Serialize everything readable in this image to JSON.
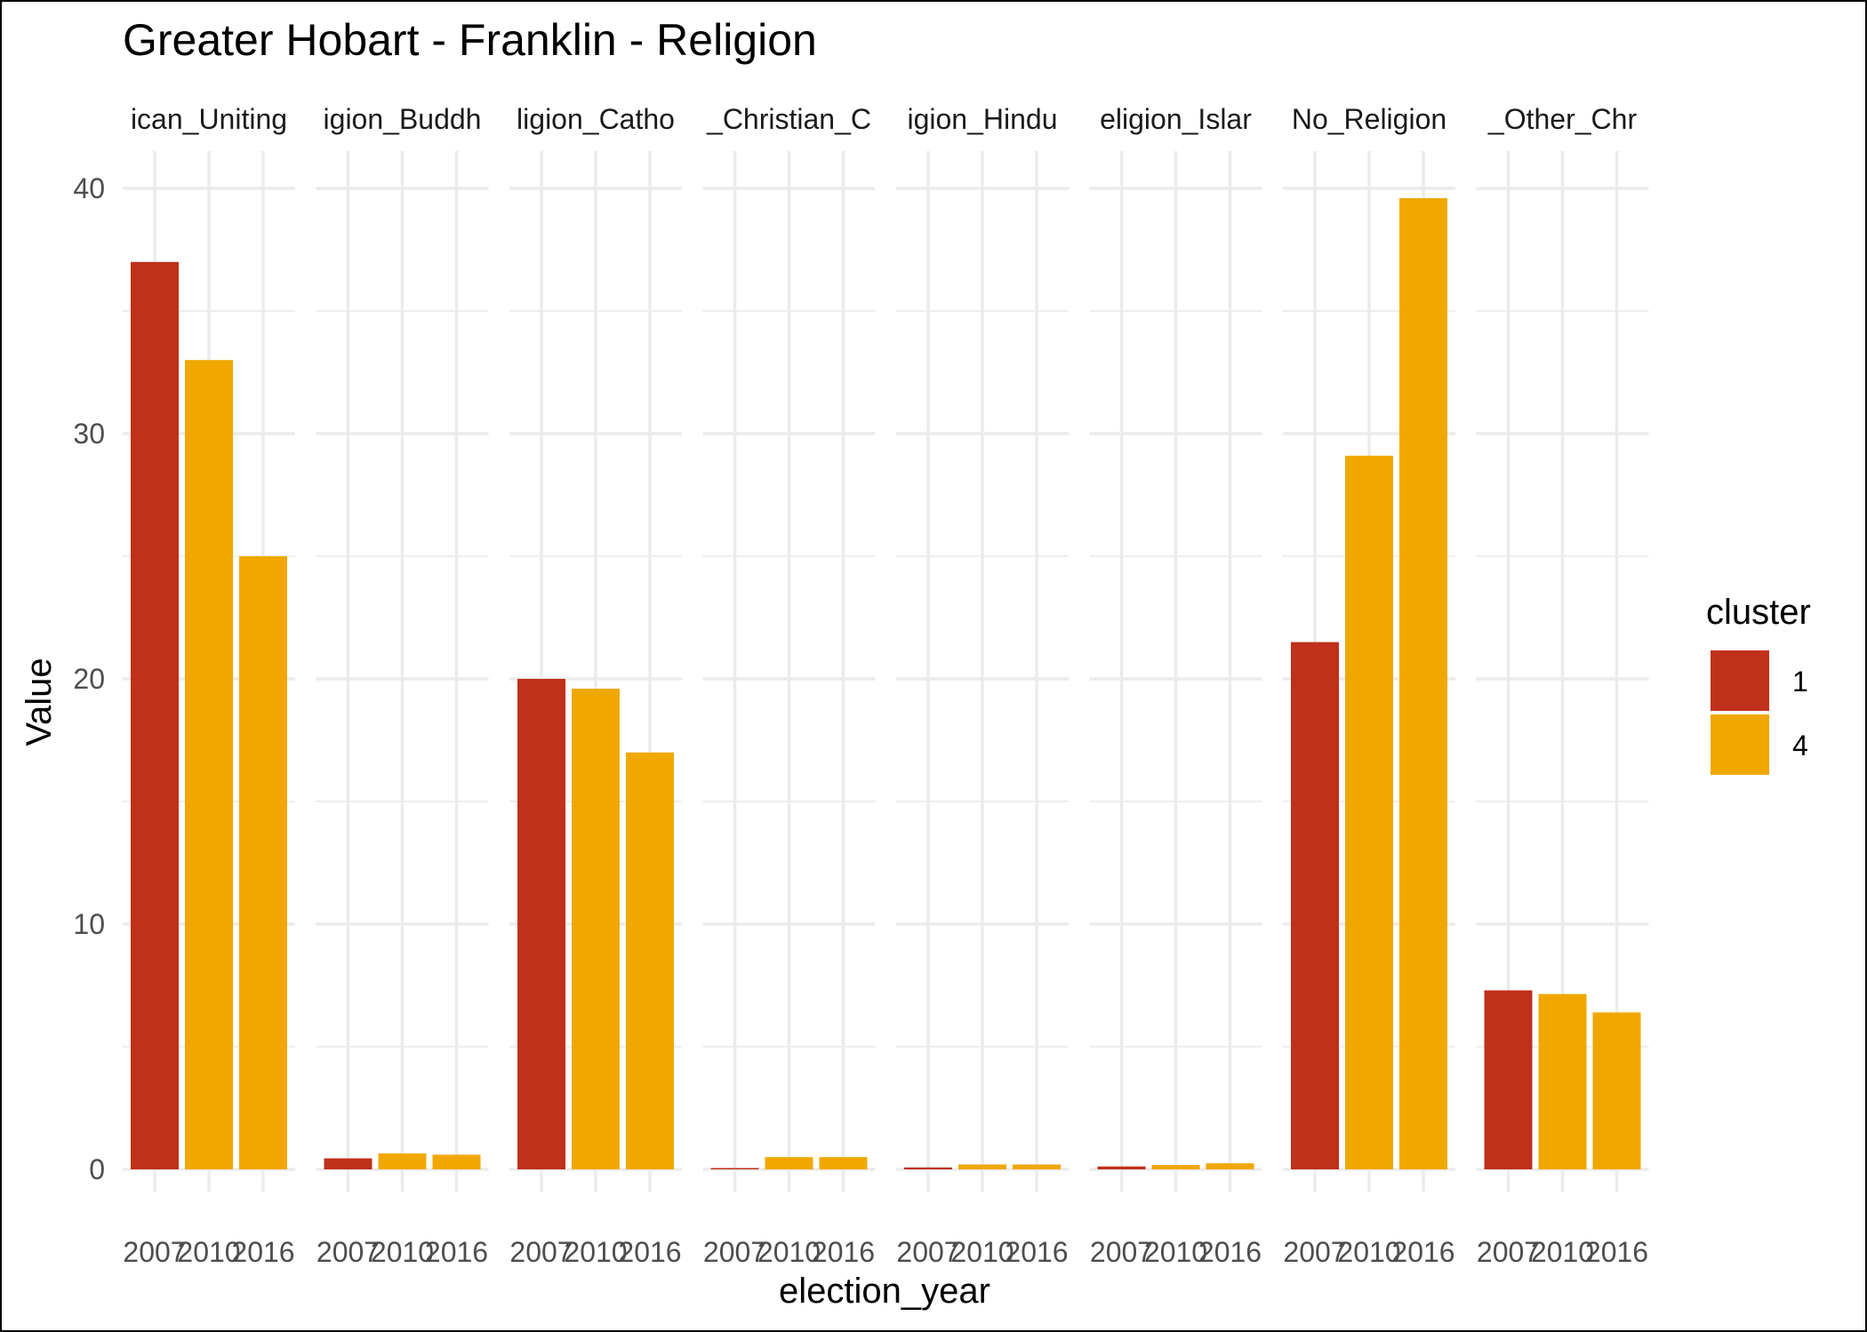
{
  "chart_data": {
    "type": "bar",
    "title": "Greater Hobart - Franklin - Religion",
    "xlabel": "election_year",
    "ylabel": "Value",
    "ylim": [
      0,
      42
    ],
    "yticks": [
      "0",
      "10",
      "20",
      "30",
      "40"
    ],
    "grid": true,
    "legend": {
      "title": "cluster",
      "placement": "right"
    },
    "facets": [
      "Religion_Anglican_Uniting",
      "Religion_Buddhism",
      "Religion_Catholic",
      "Religion_Christian_Other",
      "Religion_Hinduism",
      "Religion_Islam",
      "Religion_No_Religion",
      "Religion_Other_Christian"
    ],
    "facet_labels_visible": [
      "ican_Uniting",
      "igion_Buddh",
      "ligion_Catho",
      "_Christian_C",
      "igion_Hindu",
      "eligion_Islar",
      "No_Religion",
      "_Other_Chr"
    ],
    "categories": [
      "2007",
      "2010",
      "2016"
    ],
    "series": [
      {
        "name": "1",
        "color": "#C0301A"
      },
      {
        "name": "4",
        "color": "#F0A800"
      }
    ],
    "bars": [
      {
        "facet": 0,
        "year": "2007",
        "cluster": "1",
        "value": 37.0
      },
      {
        "facet": 0,
        "year": "2010",
        "cluster": "4",
        "value": 33.0
      },
      {
        "facet": 0,
        "year": "2016",
        "cluster": "4",
        "value": 25.0
      },
      {
        "facet": 1,
        "year": "2007",
        "cluster": "1",
        "value": 0.45
      },
      {
        "facet": 1,
        "year": "2010",
        "cluster": "4",
        "value": 0.65
      },
      {
        "facet": 1,
        "year": "2016",
        "cluster": "4",
        "value": 0.6
      },
      {
        "facet": 2,
        "year": "2007",
        "cluster": "1",
        "value": 20.0
      },
      {
        "facet": 2,
        "year": "2010",
        "cluster": "4",
        "value": 19.6
      },
      {
        "facet": 2,
        "year": "2016",
        "cluster": "4",
        "value": 17.0
      },
      {
        "facet": 3,
        "year": "2007",
        "cluster": "1",
        "value": 0.03
      },
      {
        "facet": 3,
        "year": "2010",
        "cluster": "4",
        "value": 0.5
      },
      {
        "facet": 3,
        "year": "2016",
        "cluster": "4",
        "value": 0.5
      },
      {
        "facet": 4,
        "year": "2007",
        "cluster": "1",
        "value": 0.08
      },
      {
        "facet": 4,
        "year": "2010",
        "cluster": "4",
        "value": 0.2
      },
      {
        "facet": 4,
        "year": "2016",
        "cluster": "4",
        "value": 0.2
      },
      {
        "facet": 5,
        "year": "2007",
        "cluster": "1",
        "value": 0.12
      },
      {
        "facet": 5,
        "year": "2010",
        "cluster": "4",
        "value": 0.18
      },
      {
        "facet": 5,
        "year": "2016",
        "cluster": "4",
        "value": 0.25
      },
      {
        "facet": 6,
        "year": "2007",
        "cluster": "1",
        "value": 21.5
      },
      {
        "facet": 6,
        "year": "2010",
        "cluster": "4",
        "value": 29.1
      },
      {
        "facet": 6,
        "year": "2016",
        "cluster": "4",
        "value": 39.6
      },
      {
        "facet": 7,
        "year": "2007",
        "cluster": "1",
        "value": 7.3
      },
      {
        "facet": 7,
        "year": "2010",
        "cluster": "4",
        "value": 7.15
      },
      {
        "facet": 7,
        "year": "2016",
        "cluster": "4",
        "value": 6.4
      }
    ]
  }
}
